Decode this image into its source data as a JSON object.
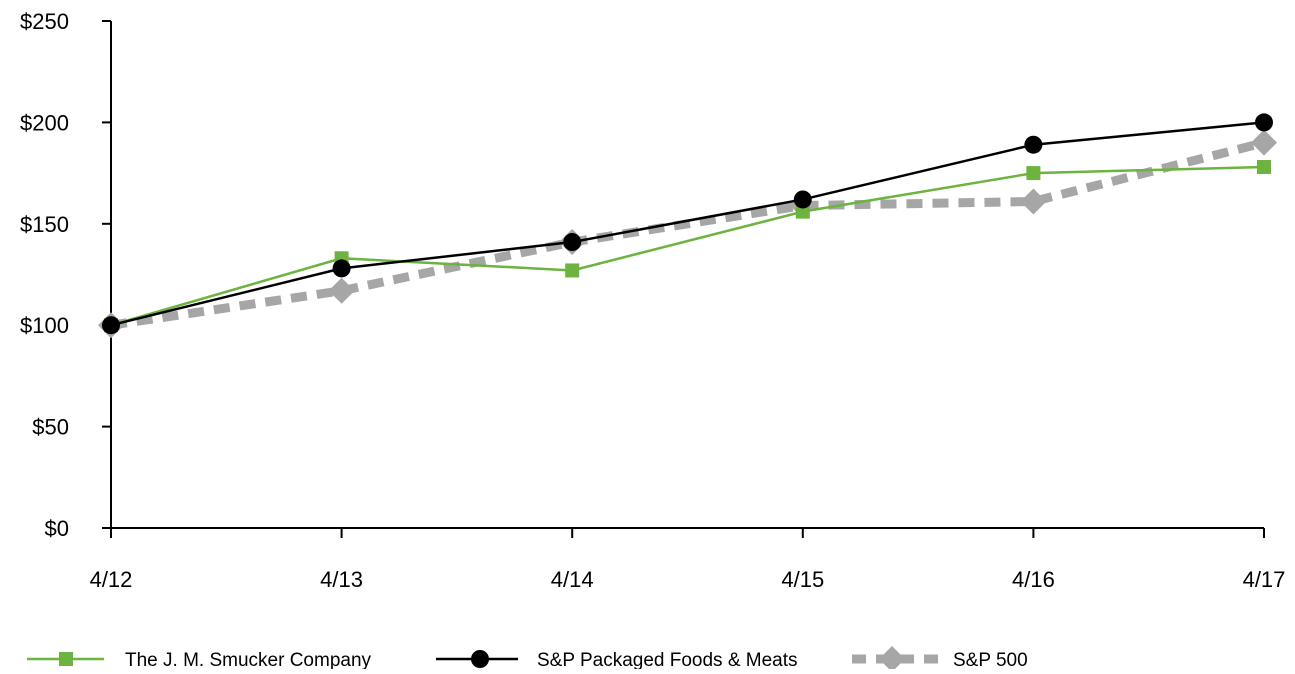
{
  "chart_data": {
    "type": "line",
    "title": "",
    "xlabel": "",
    "ylabel": "",
    "categories": [
      "4/12",
      "4/13",
      "4/14",
      "4/15",
      "4/16",
      "4/17"
    ],
    "ylim": [
      0,
      250
    ],
    "yticks": [
      0,
      50,
      100,
      150,
      200,
      250
    ],
    "ytick_labels": [
      "$0",
      "$50",
      "$100",
      "$150",
      "$200",
      "$250"
    ],
    "grid": false,
    "legend_position": "bottom",
    "series": [
      {
        "name": "The J. M. Smucker Company",
        "values": [
          100,
          133,
          127,
          156,
          175,
          178
        ],
        "color": "#6cb33f",
        "marker": "square",
        "line_style": "solid"
      },
      {
        "name": "S&P Packaged Foods & Meats",
        "values": [
          100,
          128,
          141,
          162,
          189,
          200
        ],
        "color": "#000000",
        "marker": "circle",
        "line_style": "solid"
      },
      {
        "name": "S&P 500",
        "values": [
          100,
          117,
          141,
          159,
          161,
          190
        ],
        "color": "#a6a6a6",
        "marker": "diamond",
        "line_style": "dashed"
      }
    ]
  }
}
